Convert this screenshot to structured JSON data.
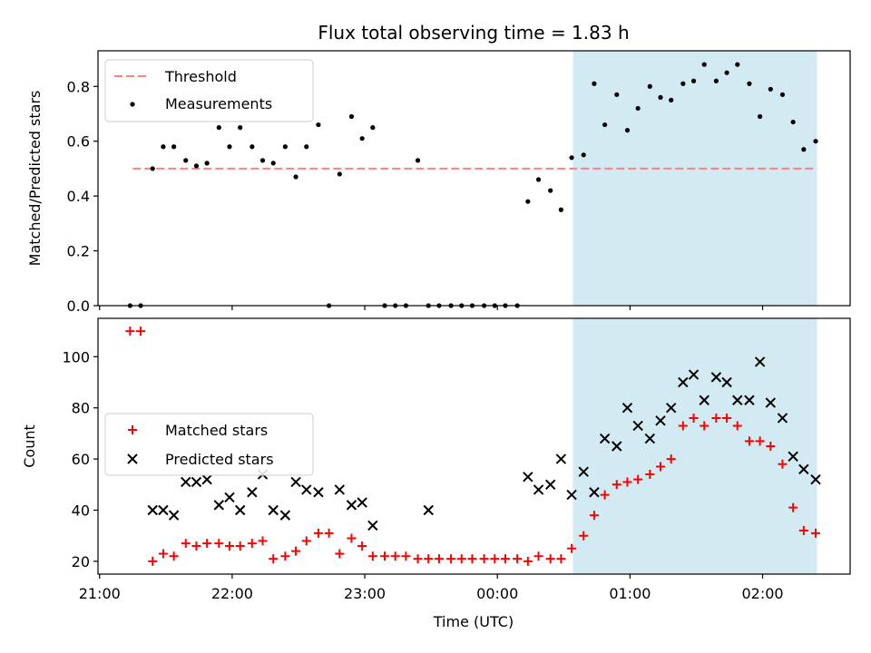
{
  "chart_data": {
    "title": "Flux total observing time = 1.83 h",
    "xlabel": "Time (UTC)",
    "x_ticks": [
      "21:00",
      "22:00",
      "23:00",
      "00:00",
      "01:00",
      "02:00"
    ],
    "x_tick_hours": [
      0,
      1,
      2,
      3,
      4,
      5
    ],
    "x_range_hours_since_21": [
      -0.012,
      5.66
    ],
    "highlight_span_hours_since_21": [
      3.57,
      5.41
    ],
    "colors": {
      "threshold": "#ff7f7f",
      "measurement": "#000000",
      "matched": "#ff0000",
      "predicted": "#000000",
      "highlight": "#add8e6"
    },
    "panels": [
      {
        "type": "scatter",
        "ylabel": "Matched/Predicted stars",
        "ylim": [
          0,
          0.93
        ],
        "yticks": [
          0.0,
          0.2,
          0.4,
          0.6,
          0.8
        ],
        "ytick_labels": [
          "0.0",
          "0.2",
          "0.4",
          "0.6",
          "0.8"
        ],
        "legend": {
          "placement": "upper-left",
          "entries": [
            "Threshold",
            "Measurements"
          ]
        },
        "threshold": {
          "name": "Threshold",
          "y": 0.5,
          "x_range_hours": [
            0.25,
            5.41
          ]
        },
        "series": [
          {
            "name": "Measurements",
            "marker": "dot",
            "x": [
              0.23,
              0.31,
              0.4,
              0.48,
              0.56,
              0.65,
              0.73,
              0.81,
              0.9,
              0.98,
              1.06,
              1.15,
              1.23,
              1.31,
              1.4,
              1.48,
              1.56,
              1.65,
              1.73,
              1.81,
              1.9,
              1.98,
              2.06,
              2.15,
              2.23,
              2.31,
              2.4,
              2.48,
              2.56,
              2.65,
              2.73,
              2.81,
              2.9,
              2.98,
              3.06,
              3.15,
              3.23,
              3.31,
              3.4,
              3.48,
              3.56,
              3.65,
              3.73,
              3.81,
              3.9,
              3.98,
              4.06,
              4.15,
              4.23,
              4.31,
              4.4,
              4.48,
              4.56,
              4.65,
              4.73,
              4.81,
              4.9,
              4.98,
              5.06,
              5.15,
              5.23,
              5.31,
              5.4
            ],
            "y": [
              0.0,
              0.0,
              0.5,
              0.58,
              0.58,
              0.53,
              0.51,
              0.52,
              0.65,
              0.58,
              0.65,
              0.58,
              0.53,
              0.52,
              0.58,
              0.47,
              0.58,
              0.66,
              0.0,
              0.48,
              0.69,
              0.61,
              0.65,
              0.0,
              0.0,
              0.0,
              0.53,
              0.0,
              0.0,
              0.0,
              0.0,
              0.0,
              0.0,
              0.0,
              0.0,
              0.0,
              0.38,
              0.46,
              0.42,
              0.35,
              0.54,
              0.55,
              0.81,
              0.66,
              0.77,
              0.64,
              0.72,
              0.8,
              0.76,
              0.75,
              0.81,
              0.82,
              0.88,
              0.82,
              0.85,
              0.88,
              0.81,
              0.69,
              0.79,
              0.77,
              0.67,
              0.57,
              0.6
            ]
          }
        ]
      },
      {
        "type": "scatter",
        "ylabel": "Count",
        "ylim": [
          15,
          115
        ],
        "yticks": [
          20,
          40,
          60,
          80,
          100
        ],
        "ytick_labels": [
          "20",
          "40",
          "60",
          "80",
          "100"
        ],
        "legend": {
          "placement": "center-left",
          "entries": [
            "Matched stars",
            "Predicted stars"
          ]
        },
        "series": [
          {
            "name": "Matched stars",
            "marker": "plus",
            "x": [
              0.23,
              0.31,
              0.4,
              0.48,
              0.56,
              0.65,
              0.73,
              0.81,
              0.9,
              0.98,
              1.06,
              1.15,
              1.23,
              1.31,
              1.4,
              1.48,
              1.56,
              1.65,
              1.73,
              1.81,
              1.9,
              1.98,
              2.06,
              2.15,
              2.23,
              2.31,
              2.4,
              2.48,
              2.56,
              2.65,
              2.73,
              2.81,
              2.9,
              2.98,
              3.06,
              3.15,
              3.23,
              3.31,
              3.4,
              3.48,
              3.56,
              3.65,
              3.73,
              3.81,
              3.9,
              3.98,
              4.06,
              4.15,
              4.23,
              4.31,
              4.4,
              4.48,
              4.56,
              4.65,
              4.73,
              4.81,
              4.9,
              4.98,
              5.06,
              5.15,
              5.23,
              5.31,
              5.4
            ],
            "y": [
              110,
              110,
              20,
              23,
              22,
              27,
              26,
              27,
              27,
              26,
              26,
              27,
              28,
              21,
              22,
              24,
              28,
              31,
              31,
              23,
              29,
              26,
              22,
              22,
              22,
              22,
              21,
              21,
              21,
              21,
              21,
              21,
              21,
              21,
              21,
              21,
              20,
              22,
              21,
              21,
              25,
              30,
              38,
              46,
              50,
              51,
              52,
              54,
              57,
              60,
              73,
              76,
              73,
              76,
              76,
              73,
              67,
              67,
              65,
              58,
              41,
              32,
              31
            ]
          },
          {
            "name": "Predicted stars",
            "marker": "x",
            "x": [
              0.4,
              0.48,
              0.56,
              0.65,
              0.73,
              0.81,
              0.9,
              0.98,
              1.06,
              1.15,
              1.23,
              1.31,
              1.4,
              1.48,
              1.56,
              1.65,
              1.81,
              1.9,
              1.98,
              2.06,
              2.48,
              3.23,
              3.31,
              3.4,
              3.48,
              3.56,
              3.65,
              3.73,
              3.81,
              3.9,
              3.98,
              4.06,
              4.15,
              4.23,
              4.31,
              4.4,
              4.48,
              4.56,
              4.65,
              4.73,
              4.81,
              4.9,
              4.98,
              5.06,
              5.15,
              5.23,
              5.31,
              5.4
            ],
            "y": [
              40,
              40,
              38,
              51,
              51,
              52,
              42,
              45,
              40,
              47,
              54,
              40,
              38,
              51,
              48,
              47,
              48,
              42,
              43,
              34,
              40,
              53,
              48,
              50,
              60,
              46,
              55,
              47,
              68,
              65,
              80,
              73,
              68,
              75,
              80,
              90,
              93,
              83,
              92,
              90,
              83,
              83,
              98,
              82,
              76,
              61,
              56,
              52
            ]
          }
        ]
      }
    ]
  }
}
